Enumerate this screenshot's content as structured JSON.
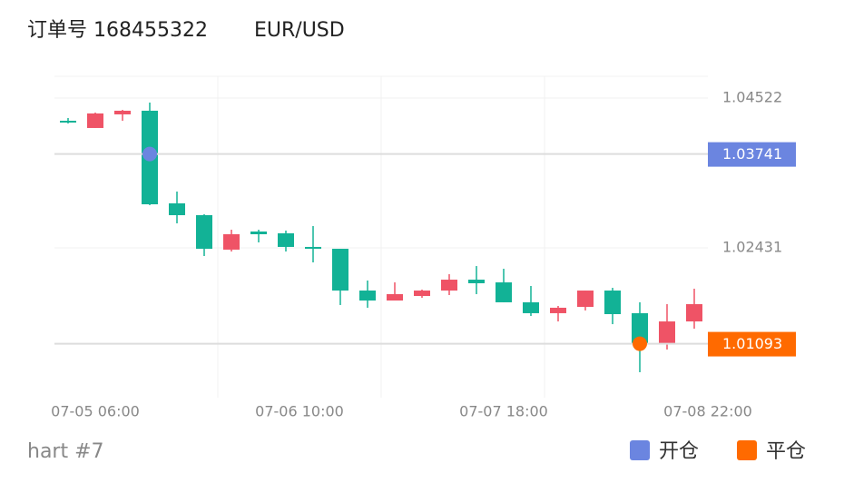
{
  "chart_data": {
    "type": "candlestick",
    "title": "订单号 168455322",
    "symbol": "EUR/USD",
    "footer": "hart #7",
    "up_color": "#ef5366",
    "down_color": "#12b296",
    "open": [
      1.04205,
      1.04104,
      1.04294,
      1.04345,
      1.03052,
      1.02887,
      1.02406,
      1.02659,
      1.02634,
      1.02444,
      1.02418,
      1.01835,
      1.01696,
      1.01759,
      1.01835,
      1.01987,
      1.01949,
      1.01671,
      1.01519,
      1.01607,
      1.01835,
      1.01519,
      1.011,
      1.01404
    ],
    "high": [
      1.04243,
      1.04319,
      1.04357,
      1.04459,
      1.03217,
      1.029,
      1.02684,
      1.02684,
      1.02672,
      1.02735,
      1.02418,
      1.01975,
      1.01949,
      1.01848,
      1.02063,
      1.02177,
      1.02139,
      1.01899,
      1.0162,
      1.01835,
      1.01873,
      1.01671,
      1.01645,
      1.01861
    ],
    "low": [
      1.04167,
      1.04104,
      1.04205,
      1.03027,
      1.02773,
      1.02317,
      1.0238,
      1.02507,
      1.0238,
      1.02228,
      1.01633,
      1.01595,
      1.01696,
      1.01734,
      1.01772,
      1.01785,
      1.01671,
      1.0148,
      1.01404,
      1.01557,
      1.01366,
      1.00695,
      1.01012,
      1.01303
    ],
    "close": [
      1.04192,
      1.04307,
      1.04345,
      1.03039,
      1.02887,
      1.02418,
      1.02621,
      1.02621,
      1.02444,
      1.02418,
      1.01835,
      1.01696,
      1.01785,
      1.01835,
      1.01987,
      1.01937,
      1.01671,
      1.01519,
      1.01595,
      1.01835,
      1.01506,
      1.01088,
      1.01404,
      1.01645
    ],
    "xticks": [
      "07-05 06:00",
      "07-06 10:00",
      "07-07 18:00",
      "07-08 22:00"
    ],
    "ylim": [
      1.0034,
      1.04826
    ],
    "yticks": [
      1.04522,
      1.02431
    ],
    "grid": true,
    "markers": [
      {
        "name": "开仓",
        "color": "#6b85e0",
        "index": 3,
        "value": 1.03741
      },
      {
        "name": "平仓",
        "color": "#ff6a00",
        "index": 21,
        "value": 1.01093
      }
    ]
  }
}
